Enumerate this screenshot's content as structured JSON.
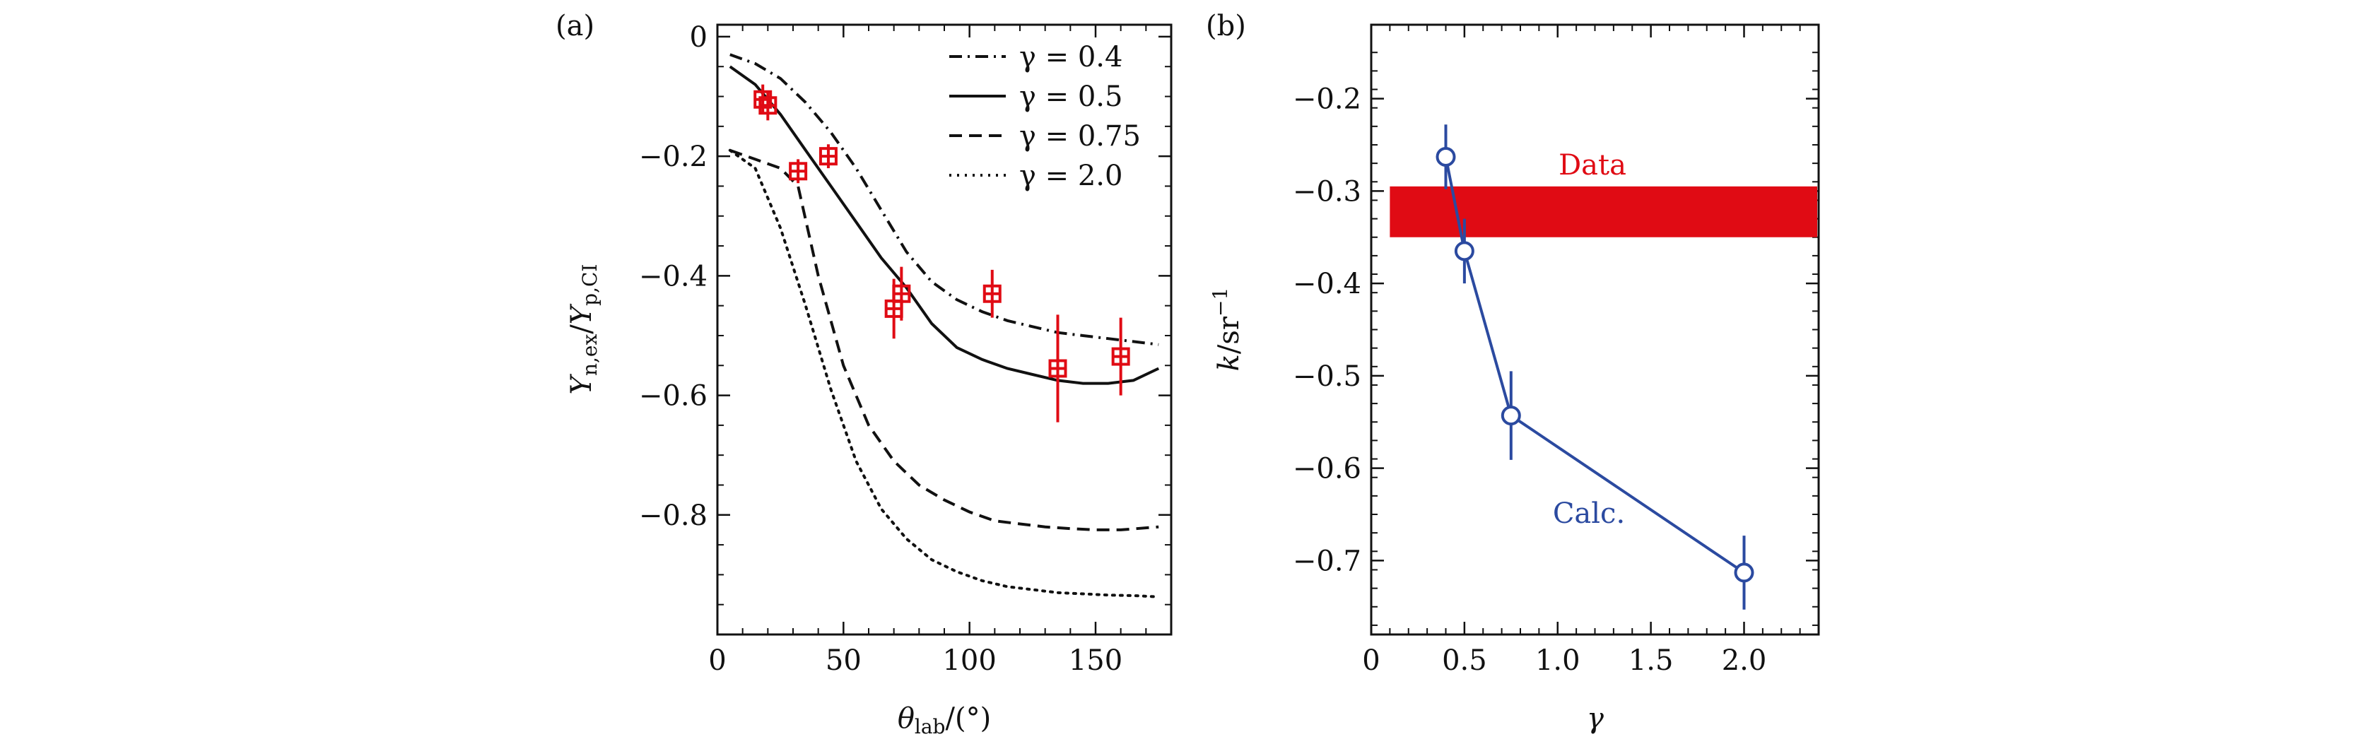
{
  "panels": {
    "a": {
      "letter": "(a)"
    },
    "b": {
      "letter": "(b)"
    }
  },
  "chart_data": [
    {
      "type": "line",
      "xlabel": "θlab/(°)",
      "ylabel": "Yn,ex/Yp,CI",
      "xlim": [
        0,
        180
      ],
      "ylim": [
        -1.0,
        0.02
      ],
      "xticks": [
        "0",
        "50",
        "100",
        "150"
      ],
      "yticks": [
        "0",
        "−0.2",
        "−0.4",
        "−0.6",
        "−0.8"
      ],
      "legend_position": "top-right",
      "series": [
        {
          "name": "γ = 0.4",
          "style": "dashdot",
          "x": [
            5,
            15,
            25,
            35,
            45,
            55,
            65,
            75,
            85,
            95,
            105,
            115,
            125,
            135,
            145,
            155,
            165,
            175
          ],
          "y": [
            -0.03,
            -0.045,
            -0.07,
            -0.11,
            -0.16,
            -0.22,
            -0.29,
            -0.36,
            -0.41,
            -0.44,
            -0.46,
            -0.475,
            -0.485,
            -0.495,
            -0.5,
            -0.505,
            -0.51,
            -0.515
          ]
        },
        {
          "name": "γ = 0.5",
          "style": "solid",
          "x": [
            5,
            15,
            25,
            35,
            45,
            55,
            65,
            75,
            85,
            95,
            105,
            115,
            125,
            135,
            145,
            155,
            165,
            175
          ],
          "y": [
            -0.05,
            -0.08,
            -0.13,
            -0.19,
            -0.25,
            -0.31,
            -0.37,
            -0.42,
            -0.48,
            -0.52,
            -0.54,
            -0.555,
            -0.565,
            -0.575,
            -0.58,
            -0.58,
            -0.575,
            -0.555
          ]
        },
        {
          "name": "γ = 0.75",
          "style": "dashed",
          "x": [
            5,
            15,
            25,
            32,
            40,
            50,
            60,
            70,
            80,
            90,
            100,
            110,
            120,
            130,
            140,
            150,
            160,
            175
          ],
          "y": [
            -0.19,
            -0.205,
            -0.22,
            -0.25,
            -0.4,
            -0.55,
            -0.65,
            -0.71,
            -0.75,
            -0.775,
            -0.795,
            -0.81,
            -0.815,
            -0.82,
            -0.823,
            -0.825,
            -0.825,
            -0.82
          ]
        },
        {
          "name": "γ = 2.0",
          "style": "dotted",
          "x": [
            5,
            15,
            25,
            35,
            45,
            55,
            65,
            75,
            85,
            95,
            105,
            115,
            125,
            135,
            145,
            155,
            165,
            175
          ],
          "y": [
            -0.19,
            -0.22,
            -0.32,
            -0.45,
            -0.59,
            -0.71,
            -0.79,
            -0.84,
            -0.875,
            -0.895,
            -0.91,
            -0.92,
            -0.925,
            -0.93,
            -0.932,
            -0.934,
            -0.935,
            -0.937
          ]
        }
      ],
      "data_points": {
        "color": "#e00b14",
        "x": [
          18,
          20,
          32,
          44,
          70,
          73,
          109,
          135,
          160
        ],
        "y": [
          -0.105,
          -0.115,
          -0.225,
          -0.2,
          -0.455,
          -0.43,
          -0.43,
          -0.555,
          -0.535
        ],
        "yerr": [
          0.025,
          0.025,
          0.02,
          0.02,
          0.05,
          0.045,
          0.04,
          0.09,
          0.065
        ],
        "xerr": [
          3,
          3,
          3,
          3,
          3,
          3,
          3,
          3,
          3
        ]
      }
    },
    {
      "type": "line",
      "xlabel": "γ",
      "ylabel": "k/sr−1",
      "xlim": [
        0,
        2.4
      ],
      "ylim": [
        -0.78,
        -0.12
      ],
      "xticks": [
        "0",
        "0.5",
        "1.0",
        "1.5",
        "2.0"
      ],
      "yticks": [
        "−0.2",
        "−0.3",
        "−0.4",
        "−0.5",
        "−0.6",
        "−0.7"
      ],
      "band": {
        "label": "Data",
        "color": "#e00b14",
        "x": [
          0.1,
          2.4
        ],
        "y": [
          -0.35,
          -0.295
        ]
      },
      "series": [
        {
          "label": "Calc.",
          "color": "#2b4aa0",
          "x": [
            0.4,
            0.5,
            0.75,
            2.0
          ],
          "y": [
            -0.263,
            -0.365,
            -0.543,
            -0.713
          ],
          "yerr": [
            0.035,
            0.035,
            0.048,
            0.04
          ]
        }
      ]
    }
  ]
}
